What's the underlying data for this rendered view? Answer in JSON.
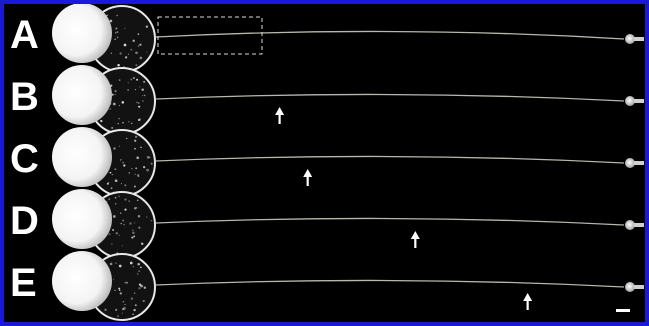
{
  "figure": {
    "panels": [
      {
        "label": "A",
        "has_arrow": false,
        "has_roi_box": true
      },
      {
        "label": "B",
        "has_arrow": true,
        "arrow_position_fraction": 0.2
      },
      {
        "label": "C",
        "has_arrow": true,
        "arrow_position_fraction": 0.26
      },
      {
        "label": "D",
        "has_arrow": true,
        "arrow_position_fraction": 0.49
      },
      {
        "label": "E",
        "has_arrow": true,
        "arrow_position_fraction": 0.73
      }
    ],
    "colors": {
      "border": "#1a1ad6",
      "background": "#000000",
      "label": "#ffffff",
      "filament": "#d8d8c8",
      "cell": "#ffffff"
    },
    "icons": [
      "up-arrow-icon",
      "scale-bar"
    ]
  }
}
